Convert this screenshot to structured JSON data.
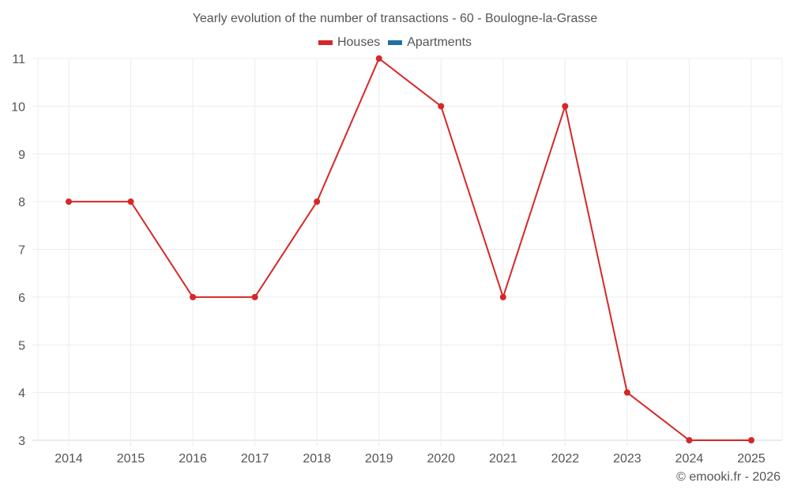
{
  "chart_data": {
    "type": "line",
    "title": "Yearly evolution of the number of transactions - 60 - Boulogne-la-Grasse",
    "categories": [
      "2014",
      "2015",
      "2016",
      "2017",
      "2018",
      "2019",
      "2020",
      "2021",
      "2022",
      "2023",
      "2024",
      "2025"
    ],
    "series": [
      {
        "name": "Houses",
        "color": "#d62728",
        "values": [
          8,
          8,
          6,
          6,
          8,
          11,
          10,
          6,
          10,
          4,
          3,
          3
        ]
      },
      {
        "name": "Apartments",
        "color": "#1f6fa8",
        "values": []
      }
    ],
    "xlabel": "",
    "ylabel": "",
    "ylim": [
      3,
      11
    ],
    "yticks": [
      3,
      4,
      5,
      6,
      7,
      8,
      9,
      10,
      11
    ],
    "grid": true,
    "legend_position": "top"
  },
  "legend": [
    {
      "label": "Houses",
      "color": "#d62728"
    },
    {
      "label": "Apartments",
      "color": "#1f6fa8"
    }
  ],
  "footer": "© emooki.fr - 2026"
}
